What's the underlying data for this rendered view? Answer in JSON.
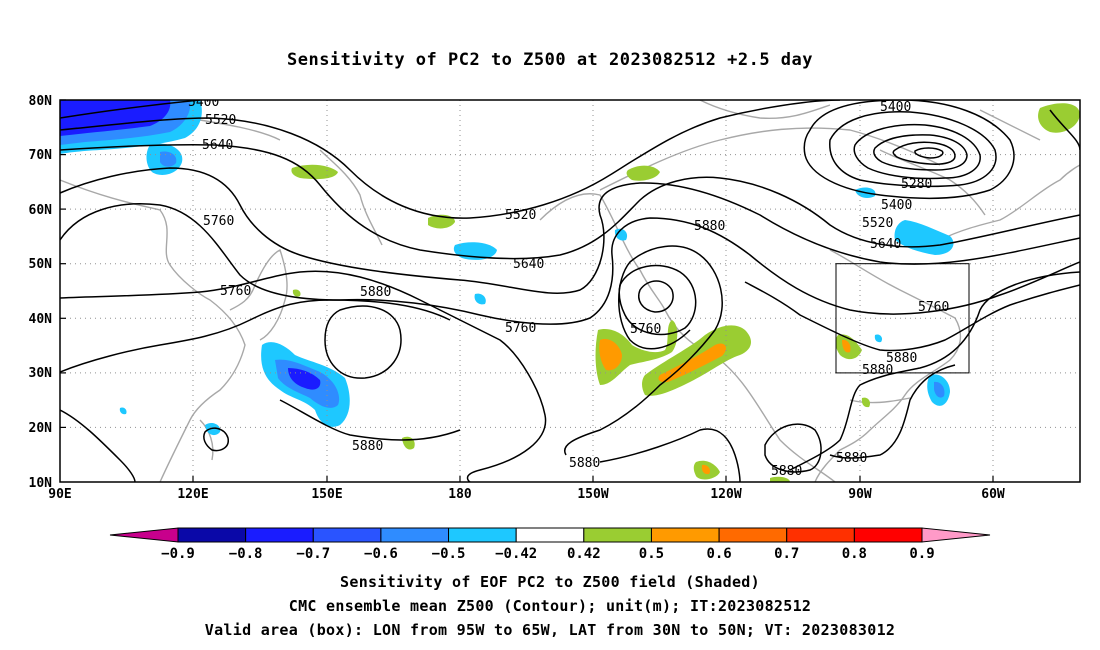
{
  "title": "Sensitivity of PC2 to Z500 at 2023082512 +2.5 day",
  "lat_labels": [
    "80N",
    "70N",
    "60N",
    "50N",
    "40N",
    "30N",
    "20N",
    "10N"
  ],
  "lon_labels": [
    "90E",
    "120E",
    "150E",
    "180",
    "150W",
    "120W",
    "90W",
    "60W"
  ],
  "contour_labels": [
    "5400",
    "5520",
    "5640",
    "5760",
    "5520",
    "5640",
    "5760",
    "5880",
    "5760",
    "5880",
    "5400",
    "5280",
    "5400",
    "5520",
    "5640",
    "5760",
    "5880",
    "5880",
    "5880",
    "5880",
    "5880",
    "5880",
    "5760"
  ],
  "colorbar": {
    "labels": [
      "-0.9",
      "-0.8",
      "-0.7",
      "-0.6",
      "-0.5",
      "-0.42",
      "0.42",
      "0.5",
      "0.6",
      "0.7",
      "0.8",
      "0.9"
    ],
    "colors": [
      "#c8008c",
      "#0a08a8",
      "#1a1cff",
      "#2a54ff",
      "#2f8cff",
      "#1ec8ff",
      "#ffffff",
      "#9acd32",
      "#ff9a00",
      "#ff6a00",
      "#ff3000",
      "#ff0000",
      "#ff9ac8"
    ]
  },
  "valid_box": {
    "lon_from": "95W",
    "lon_to": "65W",
    "lat_from": "30N",
    "lat_to": "50N"
  },
  "captions": {
    "line1": "Sensitivity of EOF PC2 to Z500 field (Shaded)",
    "line2": "CMC ensemble mean Z500 (Contour); unit(m); IT:2023082512",
    "line3": "Valid area (box): LON from 95W to 65W, LAT from 30N to 50N; VT: 2023083012"
  }
}
